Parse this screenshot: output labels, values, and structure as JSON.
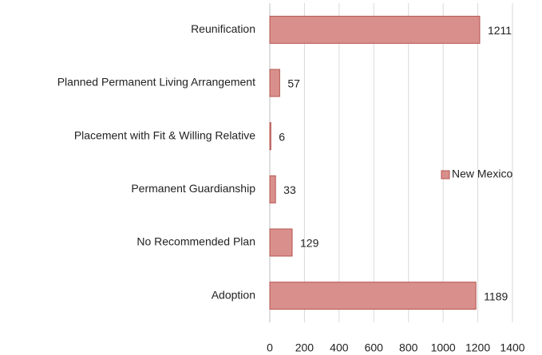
{
  "chart_data": {
    "type": "bar",
    "orientation": "horizontal",
    "categories": [
      "Reunification",
      "Planned Permanent Living Arrangement",
      "Placement with Fit & Willing Relative",
      "Permanent Guardianship",
      "No Recommended Plan",
      "Adoption"
    ],
    "series": [
      {
        "name": "New Mexico",
        "color": "#d9908c",
        "values": [
          1211,
          57,
          6,
          33,
          129,
          1189
        ]
      }
    ],
    "xlim": [
      0,
      1400
    ],
    "xticks": [
      0,
      200,
      400,
      600,
      800,
      1000,
      1200,
      1400
    ],
    "grid": true,
    "legend": "right"
  }
}
